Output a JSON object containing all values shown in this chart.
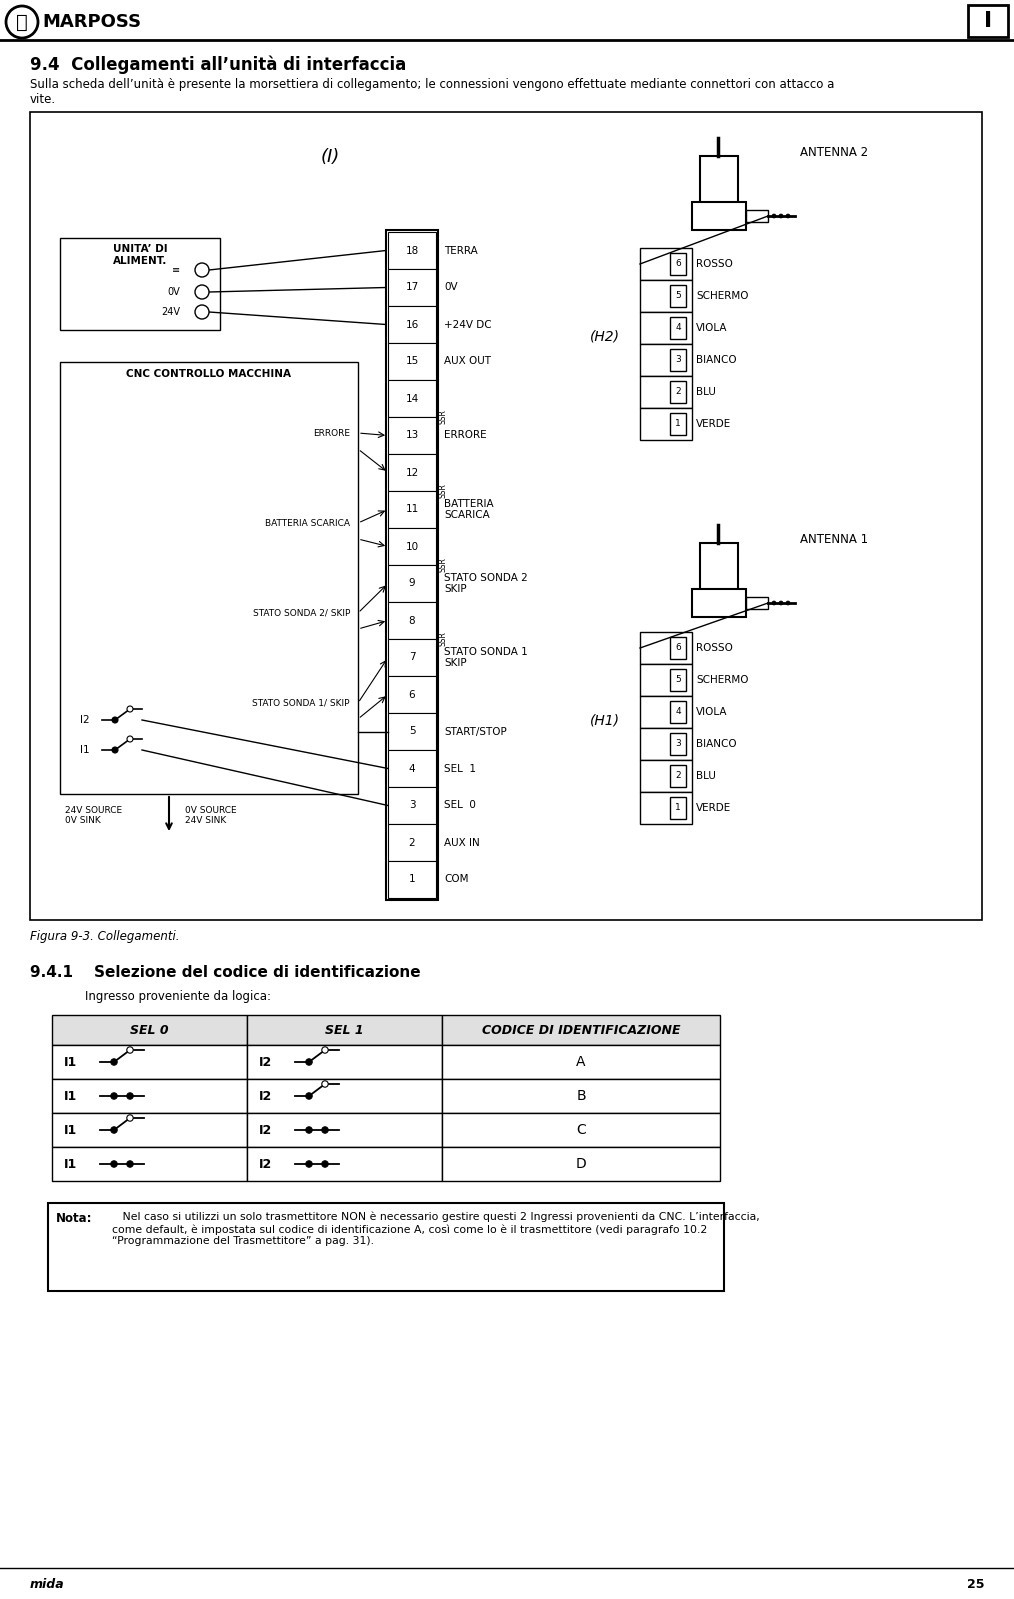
{
  "page_title": "9.4  Collegamenti all’unità di interfaccia",
  "subtitle": "Sulla scheda dell’unità è presente la morsettiera di collegamento; le connessioni vengono effettuate mediante connettori con attacco a\nvite.",
  "figure_caption": "Figura 9-3. Collegamenti.",
  "section_title": "9.4.1    Selezione del codice di identificazione",
  "section_subtitle": "Ingresso proveniente da logica:",
  "note_label": "Nota:",
  "note_text": "   Nel caso si utilizzi un solo trasmettitore NON è necessario gestire questi 2 Ingressi provenienti da CNC. L’interfaccia,\ncome default, è impostata sul codice di identificazione A, così come lo è il trasmettitore (vedi paragrafo 10.2\n“Programmazione del Trasmettitore” a pag. 31).",
  "header_logo": "MARPOSS",
  "footer_text": "mida",
  "page_number": "25",
  "terminal_labels": [
    "18",
    "17",
    "16",
    "15",
    "14",
    "13",
    "12",
    "11",
    "10",
    "9",
    "8",
    "7",
    "6",
    "5",
    "4",
    "3",
    "2",
    "1"
  ],
  "right_labels": [
    "TERRA",
    "0V",
    "+24V DC",
    "AUX OUT",
    "",
    "ERRORE",
    "",
    "BATTERIA\nSCARICA",
    "",
    "STATO SONDA 2\nSKIP",
    "",
    "STATO SONDA 1\nSKIP",
    "",
    "START/STOP",
    "SEL  1",
    "SEL  0",
    "AUX IN",
    "COM"
  ],
  "antenna2_label": "ANTENNA 2",
  "antenna1_label": "ANTENNA 1",
  "h2_label": "(H2)",
  "h1_label": "(H1)",
  "i_label": "(I)",
  "connector_labels_h2": [
    "ROSSO",
    "SCHERMO",
    "VIOLA",
    "BIANCO",
    "BLU",
    "VERDE"
  ],
  "connector_labels_h1": [
    "ROSSO",
    "SCHERMO",
    "VIOLA",
    "BIANCO",
    "BLU",
    "VERDE"
  ],
  "connector_nums_h2": [
    "6",
    "5",
    "4",
    "3",
    "2",
    "1"
  ],
  "connector_nums_h1": [
    "6",
    "5",
    "4",
    "3",
    "2",
    "1"
  ],
  "unit_label": "UNITA’ DI\nALIMENT.",
  "cnc_label": "CNC CONTROLLO MACCHINA",
  "source_label_left": "24V SOURCE\n0V SINK",
  "source_label_right": "0V SOURCE\n24V SINK",
  "i1_label": "I1",
  "i2_label": "I2",
  "table_headers": [
    "SEL 0",
    "SEL 1",
    "CODICE DI IDENTIFICAZIONE"
  ],
  "table_rows": [
    [
      "I1",
      "I2",
      "A"
    ],
    [
      "I1",
      "I2",
      "B"
    ],
    [
      "I1",
      "I2",
      "C"
    ],
    [
      "I1",
      "I2",
      "D"
    ]
  ],
  "switch_patterns": [
    [
      false,
      false
    ],
    [
      true,
      false
    ],
    [
      false,
      true
    ],
    [
      true,
      true
    ]
  ],
  "bg_color": "#ffffff",
  "box_color": "#000000",
  "light_gray": "#e0e0e0"
}
